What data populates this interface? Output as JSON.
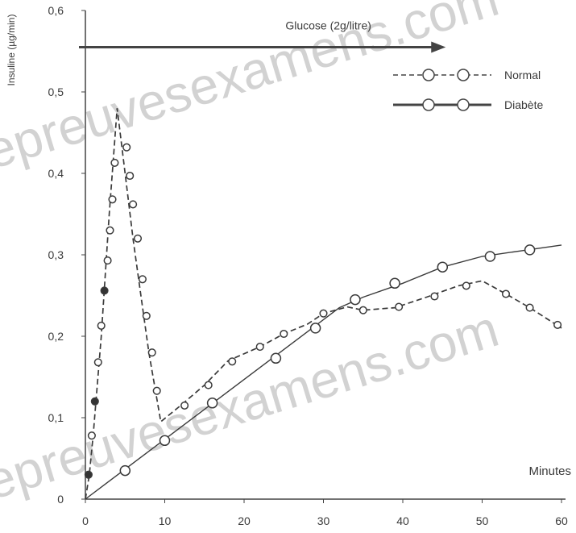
{
  "watermark": "epreuvesexamens.com",
  "chart_data": {
    "type": "line",
    "title": "",
    "xlabel": "Minutes",
    "ylabel": "Insuline (µg/min)",
    "xlim": [
      0,
      60
    ],
    "ylim": [
      0,
      0.6
    ],
    "x_ticks": [
      "0",
      "10",
      "20",
      "30",
      "40",
      "50",
      "60"
    ],
    "y_ticks": [
      "0",
      "0,1",
      "0,2",
      "0,3",
      "0,4",
      "0,5",
      "0,6"
    ],
    "grid": false,
    "legend_position": "top-right",
    "annotation": {
      "text": "Glucose (2g/litre)",
      "y": 0.555,
      "x_start": 0,
      "x_end": 45
    },
    "series": [
      {
        "name": "Normal",
        "style": "dashed",
        "line_points": [
          {
            "x": 0,
            "y": 0
          },
          {
            "x": 0.5,
            "y": 0.03
          },
          {
            "x": 1,
            "y": 0.08
          },
          {
            "x": 2,
            "y": 0.2
          },
          {
            "x": 3,
            "y": 0.35
          },
          {
            "x": 4,
            "y": 0.48
          },
          {
            "x": 5,
            "y": 0.4
          },
          {
            "x": 6,
            "y": 0.32
          },
          {
            "x": 7,
            "y": 0.25
          },
          {
            "x": 8,
            "y": 0.18
          },
          {
            "x": 9.5,
            "y": 0.095
          },
          {
            "x": 12,
            "y": 0.115
          },
          {
            "x": 15,
            "y": 0.14
          },
          {
            "x": 18,
            "y": 0.17
          },
          {
            "x": 22,
            "y": 0.187
          },
          {
            "x": 25,
            "y": 0.203
          },
          {
            "x": 28,
            "y": 0.215
          },
          {
            "x": 30,
            "y": 0.228
          },
          {
            "x": 33,
            "y": 0.236
          },
          {
            "x": 35,
            "y": 0.232
          },
          {
            "x": 39,
            "y": 0.235
          },
          {
            "x": 43,
            "y": 0.248
          },
          {
            "x": 47,
            "y": 0.262
          },
          {
            "x": 50,
            "y": 0.268
          },
          {
            "x": 53,
            "y": 0.252
          },
          {
            "x": 56,
            "y": 0.235
          },
          {
            "x": 60,
            "y": 0.21
          }
        ],
        "markers": [
          {
            "x": 0.4,
            "y": 0.03,
            "filled": true
          },
          {
            "x": 0.8,
            "y": 0.078,
            "filled": false
          },
          {
            "x": 1.2,
            "y": 0.12,
            "filled": true
          },
          {
            "x": 1.6,
            "y": 0.168,
            "filled": false
          },
          {
            "x": 2.0,
            "y": 0.213,
            "filled": false
          },
          {
            "x": 2.4,
            "y": 0.256,
            "filled": true
          },
          {
            "x": 2.8,
            "y": 0.293,
            "filled": false
          },
          {
            "x": 3.1,
            "y": 0.33,
            "filled": false
          },
          {
            "x": 3.4,
            "y": 0.368,
            "filled": false
          },
          {
            "x": 3.7,
            "y": 0.413,
            "filled": false
          },
          {
            "x": 5.2,
            "y": 0.432,
            "filled": false
          },
          {
            "x": 5.6,
            "y": 0.397,
            "filled": false
          },
          {
            "x": 6.0,
            "y": 0.362,
            "filled": false
          },
          {
            "x": 6.6,
            "y": 0.32,
            "filled": false
          },
          {
            "x": 7.2,
            "y": 0.27,
            "filled": false
          },
          {
            "x": 7.7,
            "y": 0.225,
            "filled": false
          },
          {
            "x": 8.4,
            "y": 0.18,
            "filled": false
          },
          {
            "x": 9.0,
            "y": 0.133,
            "filled": false
          },
          {
            "x": 12.5,
            "y": 0.115,
            "filled": false
          },
          {
            "x": 15.5,
            "y": 0.14,
            "filled": false
          },
          {
            "x": 18.5,
            "y": 0.169,
            "filled": false
          },
          {
            "x": 22,
            "y": 0.187,
            "filled": false
          },
          {
            "x": 25,
            "y": 0.203,
            "filled": false
          },
          {
            "x": 30,
            "y": 0.228,
            "filled": false
          },
          {
            "x": 35,
            "y": 0.232,
            "filled": false
          },
          {
            "x": 39.5,
            "y": 0.236,
            "filled": false
          },
          {
            "x": 44,
            "y": 0.249,
            "filled": false
          },
          {
            "x": 48,
            "y": 0.262,
            "filled": false
          },
          {
            "x": 53,
            "y": 0.252,
            "filled": false
          },
          {
            "x": 56,
            "y": 0.235,
            "filled": false
          },
          {
            "x": 59.5,
            "y": 0.214,
            "filled": false
          }
        ]
      },
      {
        "name": "Diabète",
        "style": "solid",
        "line_points": [
          {
            "x": 0,
            "y": 0
          },
          {
            "x": 32,
            "y": 0.235
          },
          {
            "x": 35,
            "y": 0.248
          },
          {
            "x": 40,
            "y": 0.265
          },
          {
            "x": 45,
            "y": 0.285
          },
          {
            "x": 50,
            "y": 0.298
          },
          {
            "x": 55,
            "y": 0.305
          },
          {
            "x": 60,
            "y": 0.312
          }
        ],
        "markers": [
          {
            "x": 5,
            "y": 0.035,
            "filled": false
          },
          {
            "x": 10,
            "y": 0.072,
            "filled": false
          },
          {
            "x": 16,
            "y": 0.118,
            "filled": false
          },
          {
            "x": 24,
            "y": 0.173,
            "filled": false
          },
          {
            "x": 29,
            "y": 0.21,
            "filled": false
          },
          {
            "x": 34,
            "y": 0.245,
            "filled": false
          },
          {
            "x": 39,
            "y": 0.265,
            "filled": false
          },
          {
            "x": 45,
            "y": 0.285,
            "filled": false
          },
          {
            "x": 51,
            "y": 0.298,
            "filled": false
          },
          {
            "x": 56,
            "y": 0.306,
            "filled": false
          }
        ]
      }
    ]
  }
}
